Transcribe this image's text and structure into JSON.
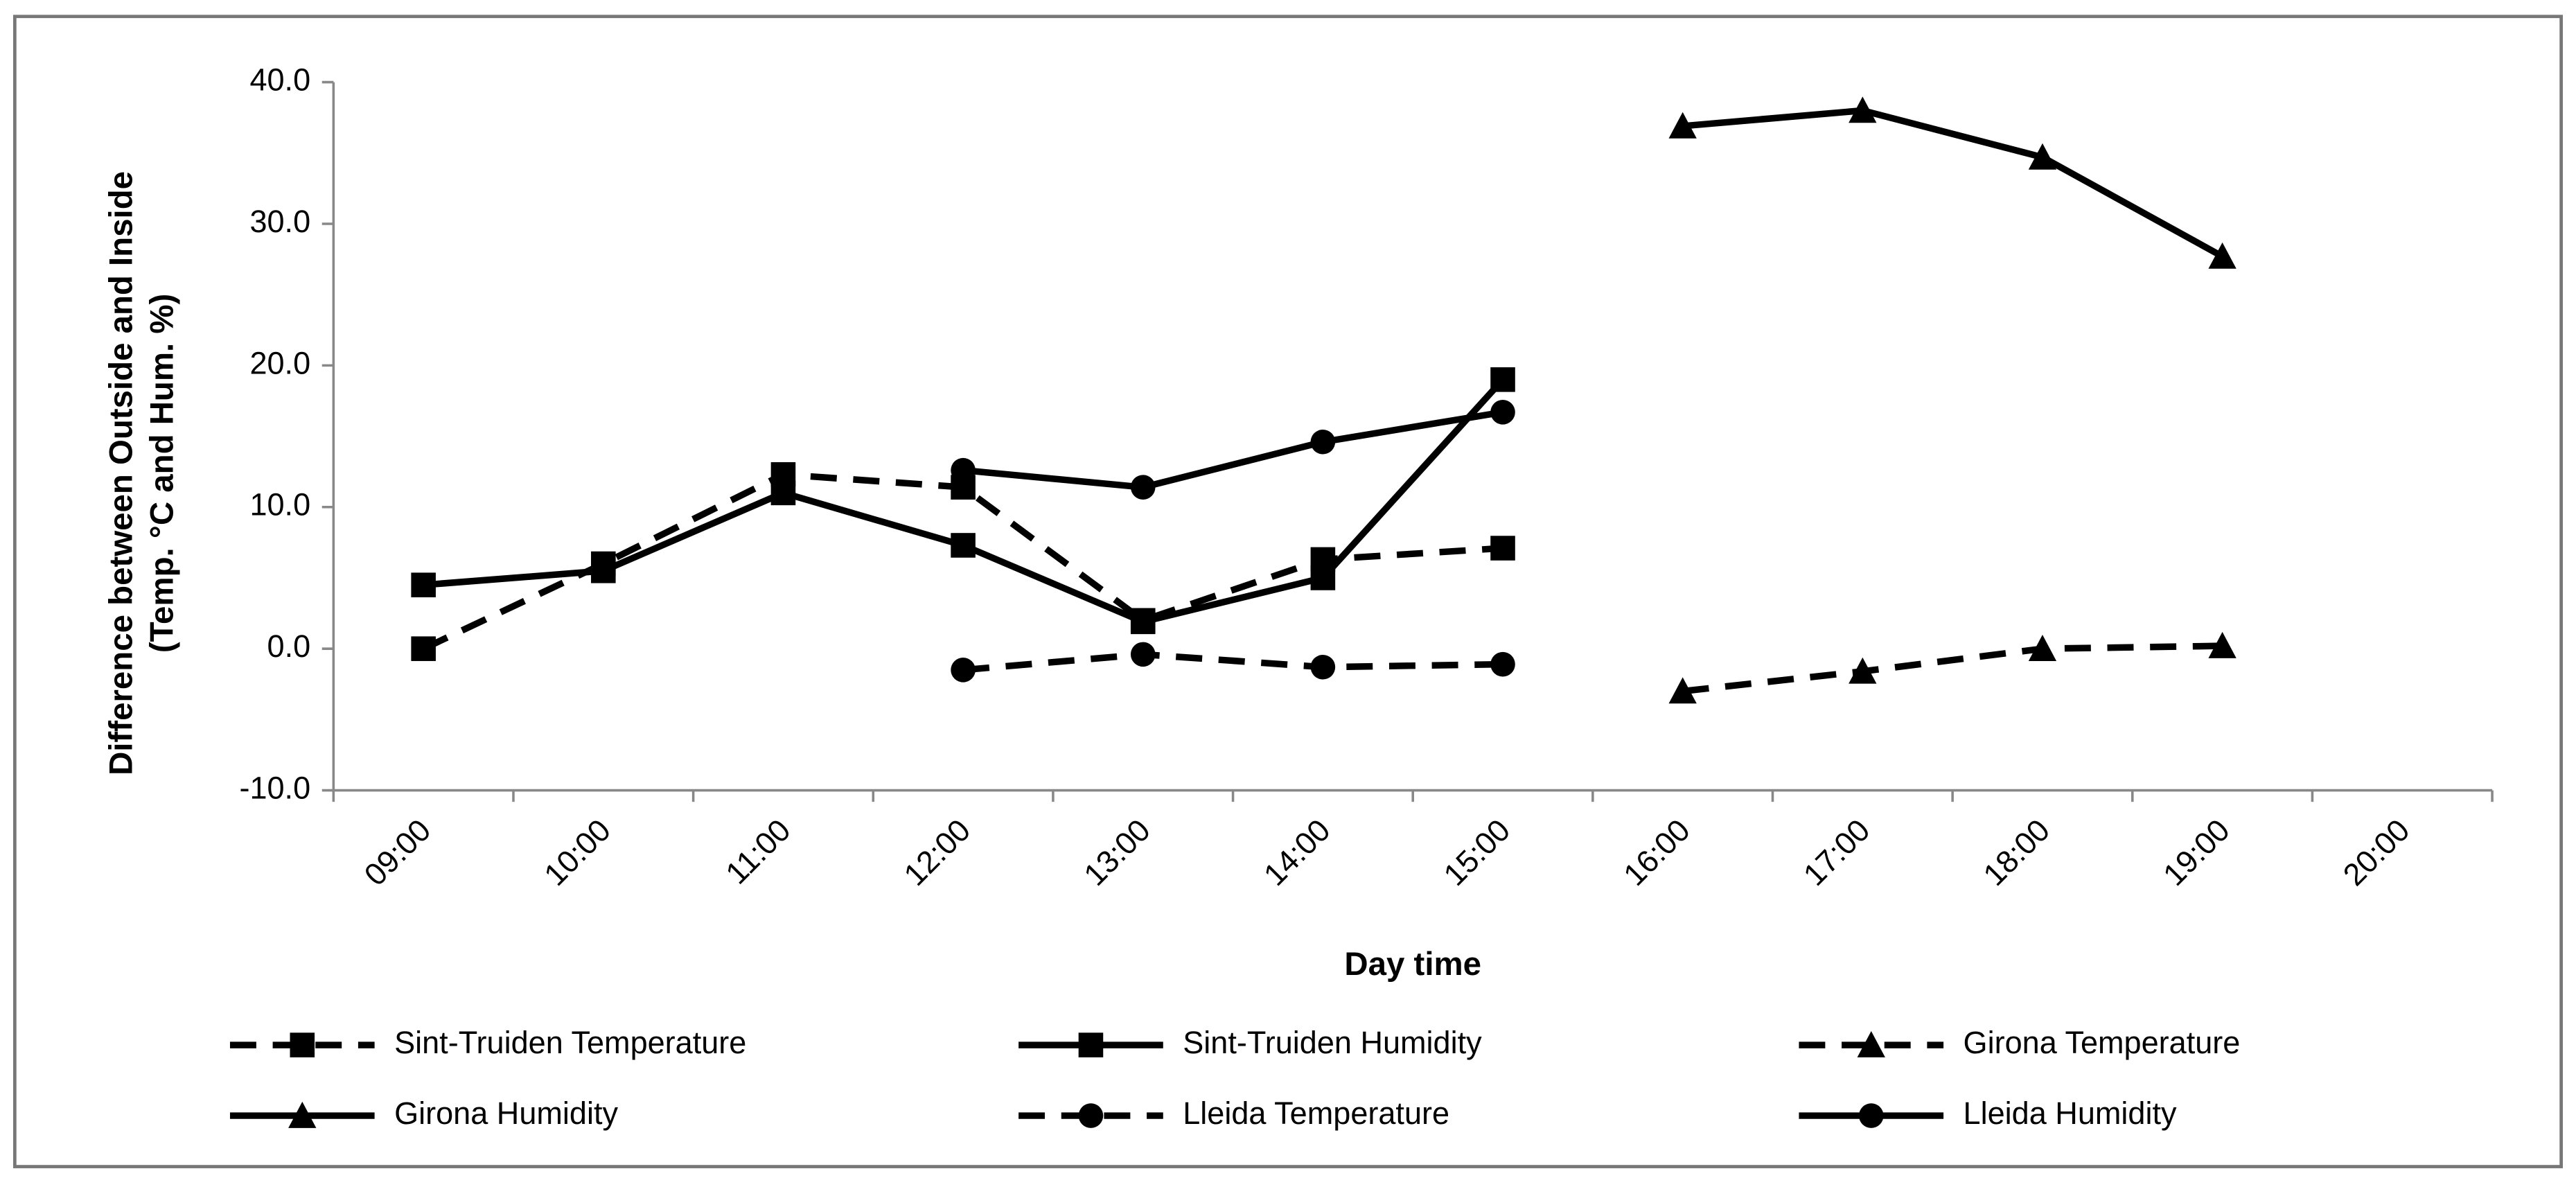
{
  "chart_data": {
    "type": "line",
    "x_label": "Day time",
    "y_label": [
      "Difference between Outside and Inside",
      "(Temp. °C and Hum. %)"
    ],
    "categories": [
      "09:00",
      "10:00",
      "11:00",
      "12:00",
      "13:00",
      "14:00",
      "15:00",
      "16:00",
      "17:00",
      "18:00",
      "19:00",
      "20:00"
    ],
    "ylim": [
      -10,
      40
    ],
    "yticks": [
      {
        "value": -10,
        "label": "-10.0"
      },
      {
        "value": 0,
        "label": "0.0"
      },
      {
        "value": 10,
        "label": "10.0"
      },
      {
        "value": 20,
        "label": "20.0"
      },
      {
        "value": 30,
        "label": "30.0"
      },
      {
        "value": 40,
        "label": "40.0"
      }
    ],
    "grid": false,
    "legend": "bottom",
    "series": [
      {
        "name": "Sint-Truiden Temperature",
        "color": "#000000",
        "dash": true,
        "marker": "square",
        "values": [
          0.0,
          6.0,
          12.3,
          11.4,
          2.0,
          6.3,
          7.1,
          null,
          null,
          null,
          null,
          null
        ]
      },
      {
        "name": "Sint-Truiden Humidity",
        "color": "#000000",
        "dash": false,
        "marker": "square",
        "values": [
          4.5,
          5.5,
          11.0,
          7.3,
          1.9,
          5.0,
          19.0,
          null,
          null,
          null,
          null,
          null
        ]
      },
      {
        "name": "Girona Temperature",
        "color": "#000000",
        "dash": true,
        "marker": "triangle",
        "values": [
          null,
          null,
          null,
          null,
          null,
          null,
          null,
          -3.0,
          -1.6,
          0.0,
          0.2,
          null
        ]
      },
      {
        "name": "Girona Humidity",
        "color": "#000000",
        "dash": false,
        "marker": "triangle",
        "values": [
          null,
          null,
          null,
          null,
          null,
          null,
          null,
          36.9,
          38.0,
          34.7,
          27.7,
          null
        ]
      },
      {
        "name": "Lleida Temperature",
        "color": "#000000",
        "dash": true,
        "marker": "circle",
        "values": [
          null,
          null,
          null,
          -1.5,
          -0.4,
          -1.3,
          -1.1,
          null,
          null,
          null,
          null,
          null
        ]
      },
      {
        "name": "Lleida Humidity",
        "color": "#000000",
        "dash": false,
        "marker": "circle",
        "values": [
          null,
          null,
          null,
          12.6,
          11.4,
          14.6,
          16.7,
          null,
          null,
          null,
          null,
          null
        ]
      }
    ]
  }
}
